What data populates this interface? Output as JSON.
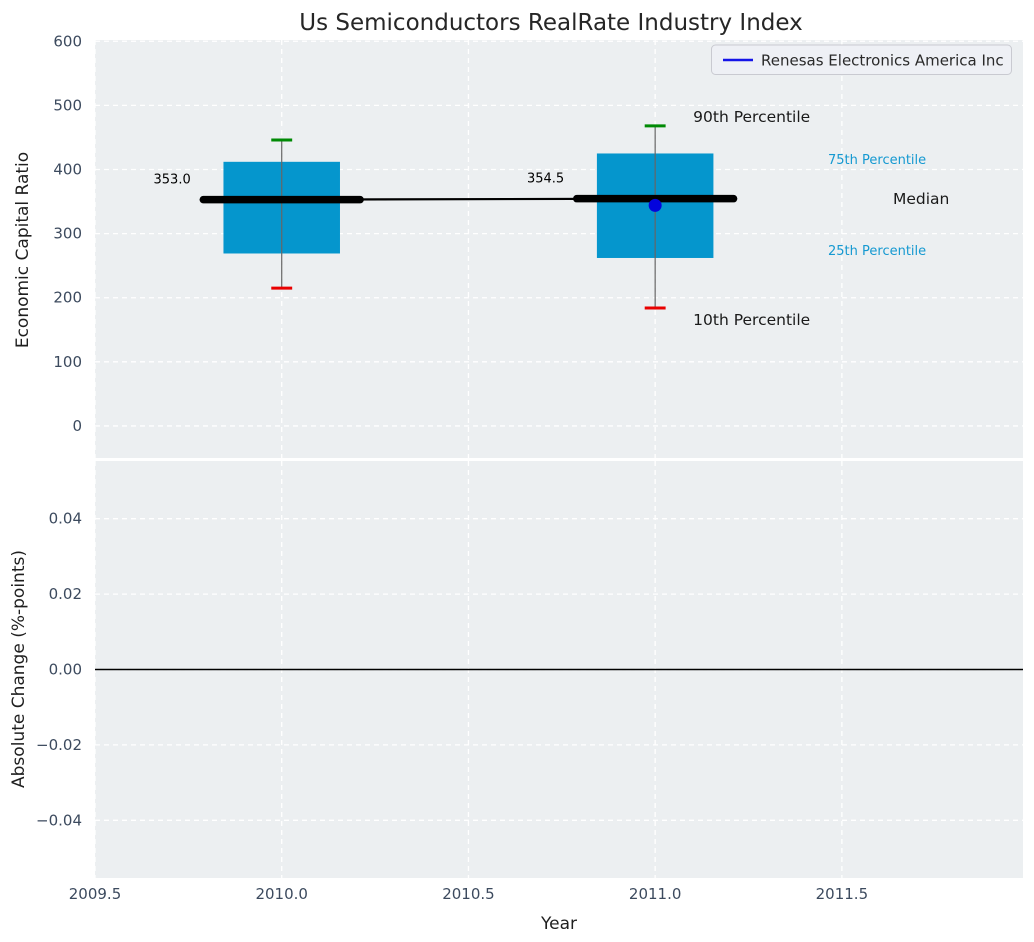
{
  "title": "Us Semiconductors RealRate Industry Index",
  "legend": {
    "label": "Renesas Electronics America Inc",
    "line_color": "#1414e8"
  },
  "axes": {
    "xlabel": "Year",
    "xlim": [
      2009.5,
      2011.985
    ],
    "xticks": [
      {
        "v": 2009.5,
        "label": "2009.5"
      },
      {
        "v": 2010.0,
        "label": "2010.0"
      },
      {
        "v": 2010.5,
        "label": "2010.5"
      },
      {
        "v": 2011.0,
        "label": "2011.0"
      },
      {
        "v": 2011.5,
        "label": "2011.5"
      }
    ],
    "top": {
      "ylabel": "Economic Capital Ratio",
      "ylim": [
        -50,
        602
      ],
      "yticks": [
        {
          "v": 0,
          "label": "0"
        },
        {
          "v": 100,
          "label": "100"
        },
        {
          "v": 200,
          "label": "200"
        },
        {
          "v": 300,
          "label": "300"
        },
        {
          "v": 400,
          "label": "400"
        },
        {
          "v": 500,
          "label": "500"
        },
        {
          "v": 600,
          "label": "600"
        }
      ]
    },
    "bottom": {
      "ylabel": "Absolute Change (%-points)",
      "ylim": [
        -0.0553,
        0.0553
      ],
      "yticks": [
        {
          "v": -0.04,
          "label": "−0.04"
        },
        {
          "v": -0.02,
          "label": "−0.02"
        },
        {
          "v": 0.0,
          "label": "0.00"
        },
        {
          "v": 0.02,
          "label": "0.02"
        },
        {
          "v": 0.04,
          "label": "0.04"
        }
      ]
    }
  },
  "colors": {
    "box_fill": "#0596cd",
    "whisker": "#666666",
    "cap_high": "#008a05",
    "cap_low": "#e90000",
    "median": "#000000",
    "marker": "#0404dd",
    "panel_bg": "#eceff1",
    "grid": "#ffffff",
    "zero_line": "#000000",
    "tick_text": "#3c4a5e",
    "percentile_text": "#1599d1",
    "text": "#1a1a1a"
  },
  "chart_data": {
    "type": "box",
    "title": "Us Semiconductors RealRate Industry Index",
    "xlabel": "Year",
    "ylabel_top": "Economic Capital Ratio",
    "ylabel_bottom": "Absolute Change (%-points)",
    "x": [
      2010,
      2011
    ],
    "boxes": [
      {
        "x": 2010,
        "whisker_low": 215,
        "q1": 269,
        "median": 353.0,
        "q3": 412,
        "whisker_high": 446,
        "median_label": "353.0"
      },
      {
        "x": 2011,
        "whisker_low": 184,
        "q1": 262,
        "median": 354.5,
        "q3": 425,
        "whisker_high": 468,
        "median_label": "354.5"
      }
    ],
    "box_halfwidth": 0.156,
    "median_bar_halfwidth": 0.21,
    "cap_halfwidth": 0.028,
    "series": [
      {
        "name": "Renesas Electronics America Inc",
        "points": [
          {
            "x": 2011,
            "y": 344
          }
        ]
      }
    ],
    "annotations": {
      "p90": "90th Percentile",
      "p10": "10th Percentile",
      "p75": "75th Percentile",
      "p25": "25th Percentile",
      "median": "Median"
    },
    "bottom_panel": {
      "zero_line": 0.0,
      "series": []
    },
    "legend_position": "upper right",
    "grid": true
  }
}
